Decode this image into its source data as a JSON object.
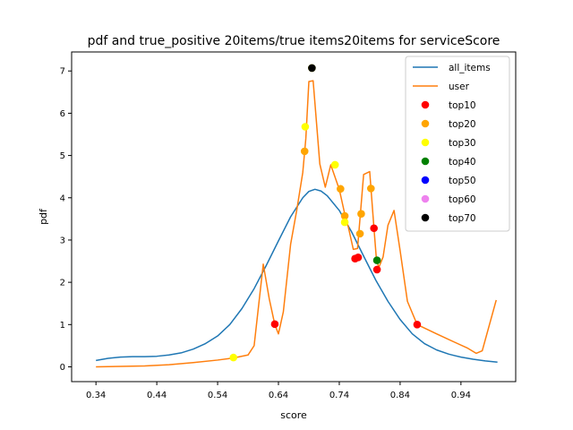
{
  "chart_data": {
    "type": "line",
    "title": "pdf and true_positive 20items/true items20items for serviceScore",
    "xlabel": "score",
    "ylabel": "pdf",
    "xlim": [
      0.3,
      1.03
    ],
    "ylim": [
      -0.35,
      7.45
    ],
    "x_ticks": [
      0.34,
      0.44,
      0.54,
      0.64,
      0.74,
      0.84,
      0.94
    ],
    "x_tick_labels": [
      "0.34",
      "0.44",
      "0.54",
      "0.64",
      "0.74",
      "0.84",
      "0.94"
    ],
    "y_ticks": [
      0,
      1,
      2,
      3,
      4,
      5,
      6,
      7
    ],
    "y_tick_labels": [
      "0",
      "1",
      "2",
      "3",
      "4",
      "5",
      "6",
      "7"
    ],
    "grid": false,
    "legend_position": "top-right",
    "series": [
      {
        "name": "all_items",
        "type": "line",
        "color": "#1f77b4",
        "points": [
          [
            0.34,
            0.15
          ],
          [
            0.36,
            0.2
          ],
          [
            0.38,
            0.23
          ],
          [
            0.4,
            0.24
          ],
          [
            0.42,
            0.24
          ],
          [
            0.44,
            0.25
          ],
          [
            0.46,
            0.28
          ],
          [
            0.48,
            0.33
          ],
          [
            0.5,
            0.42
          ],
          [
            0.52,
            0.55
          ],
          [
            0.54,
            0.73
          ],
          [
            0.56,
            1.0
          ],
          [
            0.58,
            1.38
          ],
          [
            0.6,
            1.85
          ],
          [
            0.62,
            2.4
          ],
          [
            0.64,
            2.98
          ],
          [
            0.66,
            3.55
          ],
          [
            0.68,
            4.0
          ],
          [
            0.69,
            4.15
          ],
          [
            0.7,
            4.2
          ],
          [
            0.71,
            4.16
          ],
          [
            0.72,
            4.05
          ],
          [
            0.74,
            3.7
          ],
          [
            0.76,
            3.2
          ],
          [
            0.78,
            2.62
          ],
          [
            0.8,
            2.05
          ],
          [
            0.82,
            1.55
          ],
          [
            0.84,
            1.12
          ],
          [
            0.86,
            0.78
          ],
          [
            0.88,
            0.55
          ],
          [
            0.9,
            0.4
          ],
          [
            0.92,
            0.3
          ],
          [
            0.94,
            0.23
          ],
          [
            0.96,
            0.18
          ],
          [
            0.98,
            0.14
          ],
          [
            1.0,
            0.11
          ]
        ]
      },
      {
        "name": "user",
        "type": "line",
        "color": "#ff7f0e",
        "points": [
          [
            0.34,
            0.0
          ],
          [
            0.38,
            0.01
          ],
          [
            0.42,
            0.02
          ],
          [
            0.46,
            0.05
          ],
          [
            0.5,
            0.1
          ],
          [
            0.54,
            0.16
          ],
          [
            0.566,
            0.21
          ],
          [
            0.59,
            0.28
          ],
          [
            0.6,
            0.5
          ],
          [
            0.615,
            2.43
          ],
          [
            0.625,
            1.6
          ],
          [
            0.634,
            1.0
          ],
          [
            0.64,
            0.78
          ],
          [
            0.648,
            1.3
          ],
          [
            0.66,
            2.9
          ],
          [
            0.67,
            3.7
          ],
          [
            0.68,
            4.6
          ],
          [
            0.685,
            5.4
          ],
          [
            0.69,
            6.75
          ],
          [
            0.697,
            6.77
          ],
          [
            0.708,
            4.8
          ],
          [
            0.717,
            4.25
          ],
          [
            0.726,
            4.78
          ],
          [
            0.74,
            4.2
          ],
          [
            0.75,
            3.55
          ],
          [
            0.755,
            3.3
          ],
          [
            0.763,
            2.78
          ],
          [
            0.77,
            2.8
          ],
          [
            0.78,
            4.55
          ],
          [
            0.79,
            4.62
          ],
          [
            0.797,
            3.28
          ],
          [
            0.801,
            2.55
          ],
          [
            0.805,
            2.35
          ],
          [
            0.812,
            2.6
          ],
          [
            0.82,
            3.35
          ],
          [
            0.83,
            3.7
          ],
          [
            0.84,
            2.75
          ],
          [
            0.852,
            1.55
          ],
          [
            0.868,
            1.0
          ],
          [
            0.9,
            0.78
          ],
          [
            0.93,
            0.58
          ],
          [
            0.95,
            0.45
          ],
          [
            0.965,
            0.32
          ],
          [
            0.975,
            0.38
          ],
          [
            0.998,
            1.58
          ]
        ]
      },
      {
        "name": "top10",
        "type": "scatter",
        "color": "#ff0000",
        "points": [
          [
            0.634,
            1.01
          ],
          [
            0.766,
            2.56
          ],
          [
            0.771,
            2.59
          ],
          [
            0.797,
            3.28
          ],
          [
            0.802,
            2.3
          ],
          [
            0.868,
            1.0
          ]
        ]
      },
      {
        "name": "top20",
        "type": "scatter",
        "color": "#ffa500",
        "points": [
          [
            0.683,
            5.1
          ],
          [
            0.742,
            4.21
          ],
          [
            0.749,
            3.57
          ],
          [
            0.774,
            3.15
          ],
          [
            0.776,
            3.62
          ],
          [
            0.792,
            4.22
          ]
        ]
      },
      {
        "name": "top30",
        "type": "scatter",
        "color": "#ffff00",
        "points": [
          [
            0.566,
            0.22
          ],
          [
            0.684,
            5.68
          ],
          [
            0.695,
            7.07
          ],
          [
            0.733,
            4.78
          ],
          [
            0.749,
            3.42
          ]
        ]
      },
      {
        "name": "top40",
        "type": "scatter",
        "color": "#008000",
        "points": [
          [
            0.802,
            2.52
          ]
        ]
      },
      {
        "name": "top50",
        "type": "scatter",
        "color": "#0000ff",
        "points": []
      },
      {
        "name": "top60",
        "type": "scatter",
        "color": "#ee82ee",
        "points": []
      },
      {
        "name": "top70",
        "type": "scatter",
        "color": "#000000",
        "points": [
          [
            0.695,
            7.07
          ]
        ]
      }
    ]
  }
}
